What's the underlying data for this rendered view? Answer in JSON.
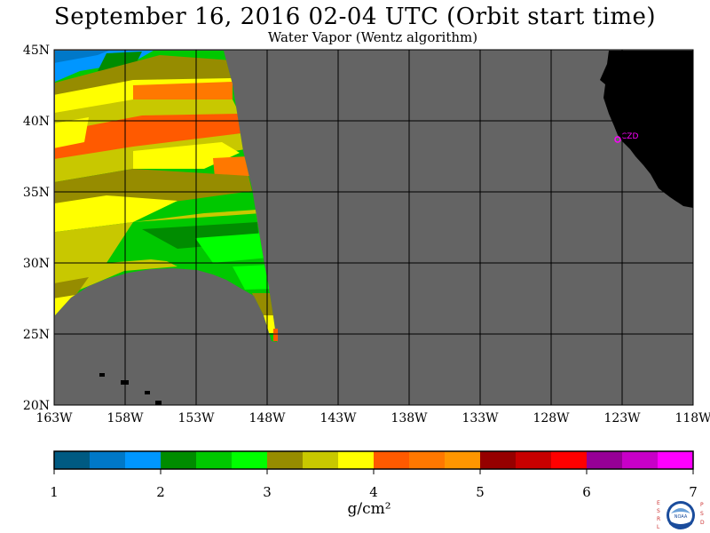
{
  "title": "September 16, 2016  02-04 UTC  (Orbit start time)",
  "subtitle": "Water Vapor (Wentz algorithm)",
  "map": {
    "lat_labels": [
      "45N",
      "40N",
      "35N",
      "30N",
      "25N",
      "20N"
    ],
    "lon_labels": [
      "163W",
      "158W",
      "153W",
      "148W",
      "143W",
      "138W",
      "133W",
      "128W",
      "123W",
      "118W"
    ],
    "station_label": "CZD",
    "colors": {
      "no_data": "#646464",
      "land": "#000000",
      "grid": "#000000",
      "station": "#ff00ff"
    }
  },
  "colorbar": {
    "tick_labels": [
      "1",
      "2",
      "3",
      "4",
      "5",
      "6",
      "7"
    ],
    "unit_label": "g/cm²",
    "colors": [
      "#005a82",
      "#0078c8",
      "#0096ff",
      "#008c00",
      "#00c800",
      "#00ff00",
      "#968c00",
      "#c8c800",
      "#ffff00",
      "#ff5a00",
      "#ff7800",
      "#ff9600",
      "#960000",
      "#c80000",
      "#ff0000",
      "#960096",
      "#c800c8",
      "#ff00ff"
    ]
  },
  "logo": {
    "left_letters": "ESRL",
    "right_letters": "PSD",
    "center_text": "NOAA"
  }
}
